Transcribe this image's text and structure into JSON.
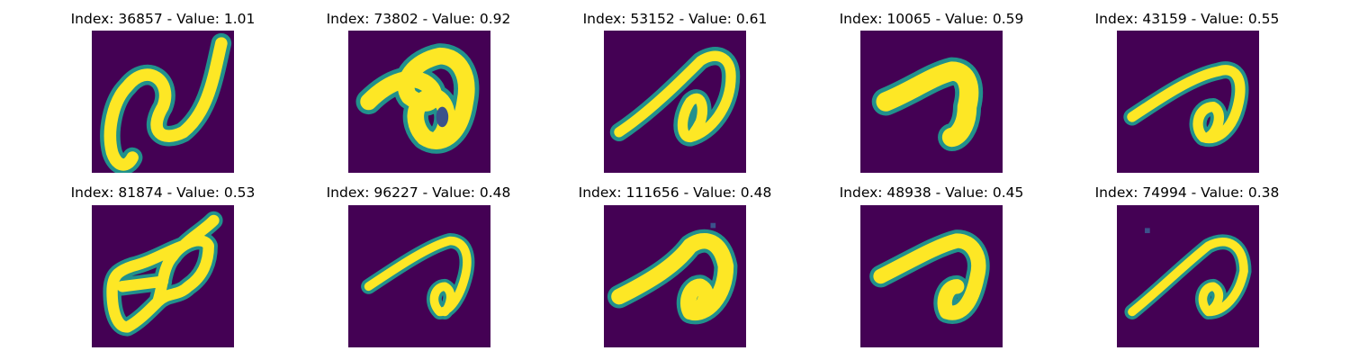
{
  "figure": {
    "background": "#ffffff",
    "colormap": "viridis",
    "image_background": "#440154",
    "stroke_high": "#fde725",
    "stroke_edge": "#21918c"
  },
  "panels": [
    {
      "title": "Index: 36857 - Value: 1.01",
      "index": 36857,
      "value": 1.01
    },
    {
      "title": "Index: 73802 - Value: 0.92",
      "index": 73802,
      "value": 0.92
    },
    {
      "title": "Index: 53152 - Value: 0.61",
      "index": 53152,
      "value": 0.61
    },
    {
      "title": "Index: 10065 - Value: 0.59",
      "index": 10065,
      "value": 0.59
    },
    {
      "title": "Index: 43159 - Value: 0.55",
      "index": 43159,
      "value": 0.55
    },
    {
      "title": "Index: 81874 - Value: 0.53",
      "index": 81874,
      "value": 0.53
    },
    {
      "title": "Index: 96227 - Value: 0.48",
      "index": 96227,
      "value": 0.48
    },
    {
      "title": "Index: 111656 - Value: 0.48",
      "index": 111656,
      "value": 0.48
    },
    {
      "title": "Index: 48938 - Value: 0.45",
      "index": 48938,
      "value": 0.45
    },
    {
      "title": "Index: 74994 - Value: 0.38",
      "index": 74994,
      "value": 0.38
    }
  ]
}
